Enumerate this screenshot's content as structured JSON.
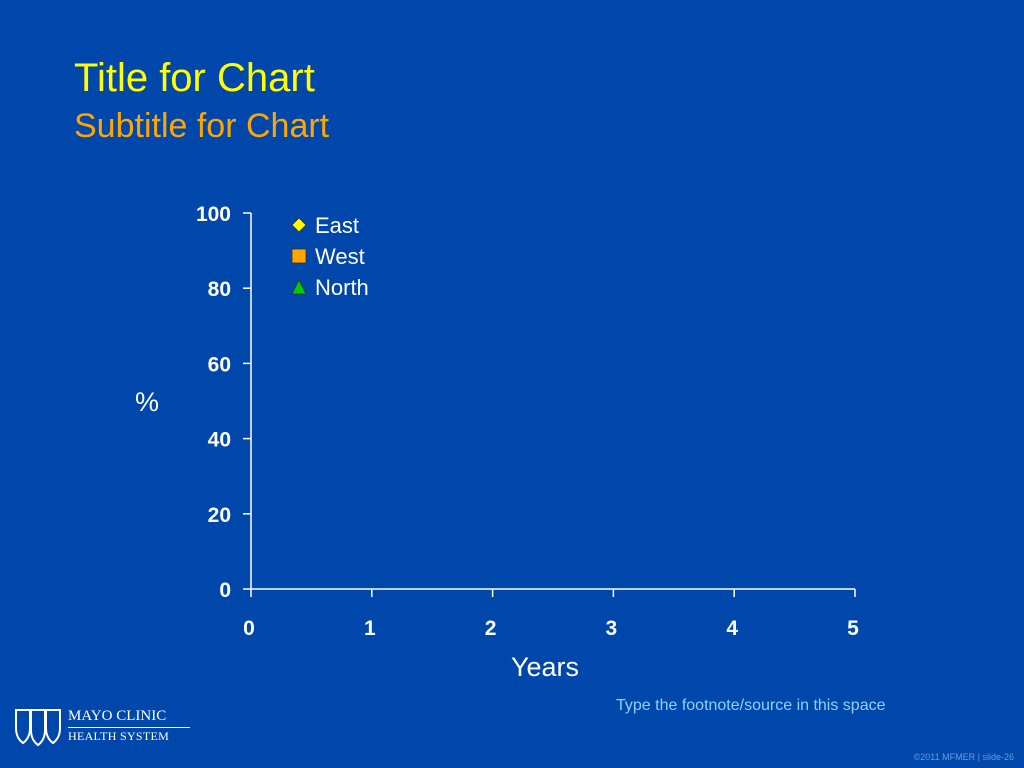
{
  "slide": {
    "title": "Title for Chart",
    "subtitle": "Subtitle for Chart",
    "footnote": "Type the footnote/source in this space",
    "logo_line1": "MAYO CLINIC",
    "logo_line2": "HEALTH SYSTEM",
    "slide_number": "©2011 MFMER  |  slide-26"
  },
  "colors": {
    "background": "#0047AB",
    "title": "#FFFF00",
    "subtitle": "#FFA500",
    "axis": "#FFFFFF",
    "footnote": "#8FD0FF"
  },
  "chart_data": {
    "type": "scatter",
    "title": "",
    "xlabel": "Years",
    "ylabel": "%",
    "xlim": [
      0,
      5
    ],
    "ylim": [
      0,
      100
    ],
    "xticks": [
      0,
      1,
      2,
      3,
      4,
      5
    ],
    "yticks": [
      0,
      20,
      40,
      60,
      80,
      100
    ],
    "grid": false,
    "legend_position": "top-left",
    "series": [
      {
        "name": "East",
        "marker": "diamond",
        "color": "#FFFF00",
        "x": [],
        "y": []
      },
      {
        "name": "West",
        "marker": "square",
        "color": "#FFA500",
        "x": [],
        "y": []
      },
      {
        "name": "North",
        "marker": "triangle",
        "color": "#00CC00",
        "x": [],
        "y": []
      }
    ]
  }
}
